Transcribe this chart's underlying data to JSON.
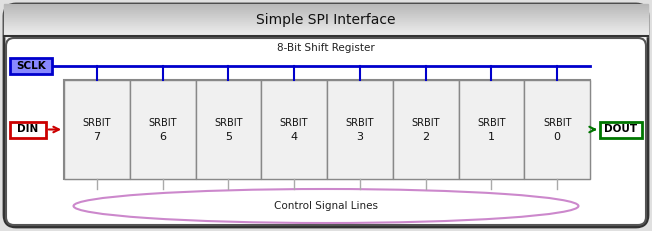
{
  "title": "Simple SPI Interface",
  "shift_register_label": "8-Bit Shift Register",
  "control_signal_label": "Control Signal Lines",
  "sclk_label": "SCLK",
  "din_label": "DIN",
  "dout_label": "DOUT",
  "srbit_labels": [
    "SRBIT",
    "SRBIT",
    "SRBIT",
    "SRBIT",
    "SRBIT",
    "SRBIT",
    "SRBIT",
    "SRBIT"
  ],
  "srbit_nums": [
    "7",
    "6",
    "5",
    "4",
    "3",
    "2",
    "1",
    "0"
  ],
  "sclk_color": "#0000cc",
  "din_color": "#cc0000",
  "dout_color": "#007700",
  "control_ellipse_color": "#cc88cc",
  "outer_edge": "#333333",
  "inner_edge": "#555555",
  "sr_edge": "#888888",
  "fig_bg": "#e0e0e0",
  "outer_bg": "#f2f2f2",
  "title_bg_light": "#f5f5f5",
  "title_bg_dark": "#b8b8b8",
  "white": "#ffffff",
  "font_size_title": 10,
  "font_size_sr_label": 7.5,
  "font_size_cell": 7,
  "font_size_io": 7.5
}
